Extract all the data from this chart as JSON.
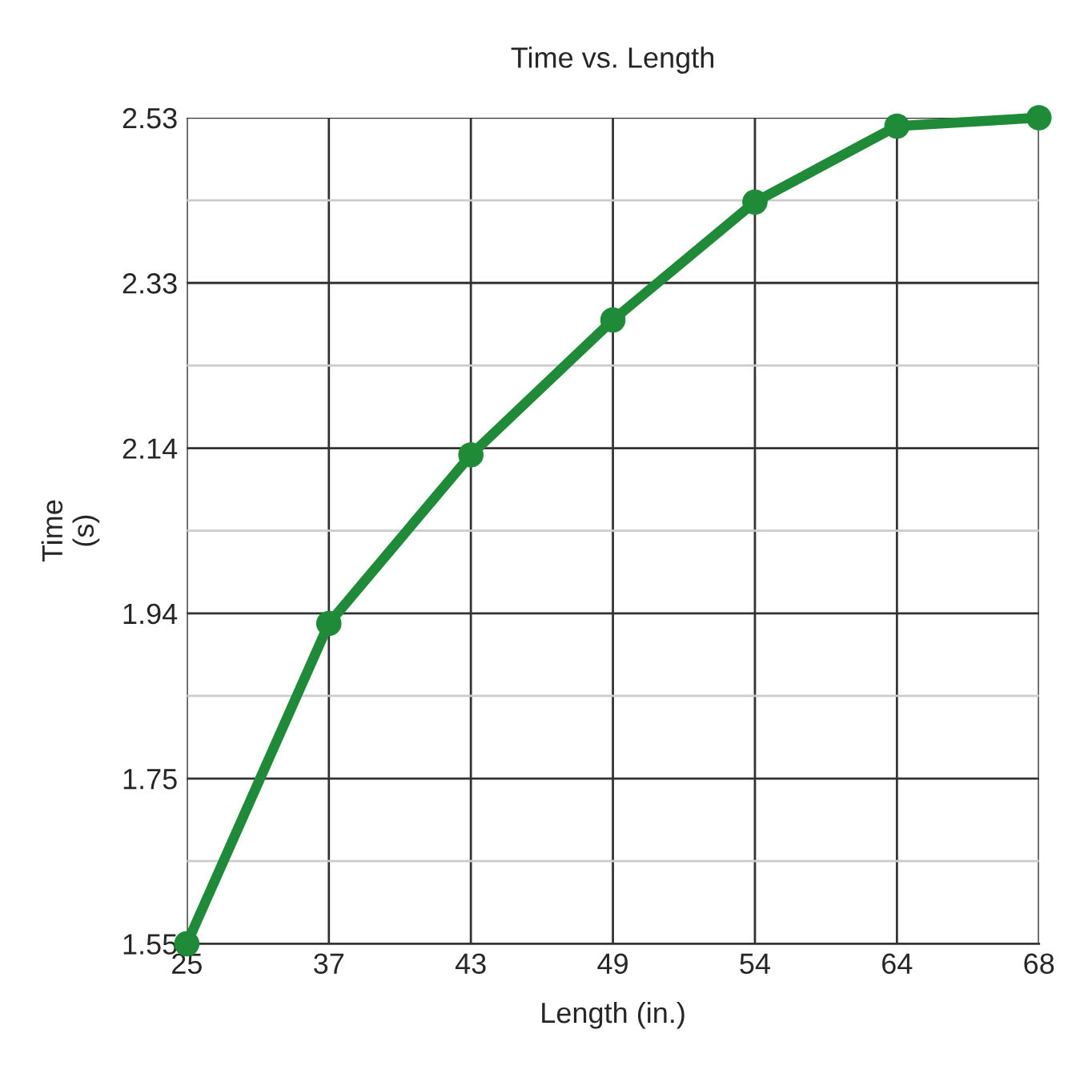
{
  "chart_data": {
    "type": "line",
    "title": "Time vs. Length",
    "xlabel": "Length (in.)",
    "ylabel": "Time\n(s)",
    "categories": [
      "25",
      "37",
      "43",
      "49",
      "54",
      "64",
      "68"
    ],
    "series": [
      {
        "color": "#1f8a38",
        "values": [
          1.55,
          1.93,
          2.13,
          2.29,
          2.43,
          2.52,
          2.53
        ]
      }
    ],
    "ylim": [
      1.55,
      2.53
    ],
    "yticks": [
      {
        "value": 1.55,
        "label": "1.55"
      },
      {
        "value": 1.648,
        "label": null
      },
      {
        "value": 1.746,
        "label": "1.75"
      },
      {
        "value": 1.844,
        "label": null
      },
      {
        "value": 1.942,
        "label": "1.94"
      },
      {
        "value": 2.04,
        "label": null
      },
      {
        "value": 2.138,
        "label": "2.14"
      },
      {
        "value": 2.236,
        "label": null
      },
      {
        "value": 2.334,
        "label": "2.33"
      },
      {
        "value": 2.432,
        "label": null
      },
      {
        "value": 2.53,
        "label": "2.53"
      }
    ],
    "grid": true,
    "marker": "circle",
    "line_style": "solid"
  }
}
